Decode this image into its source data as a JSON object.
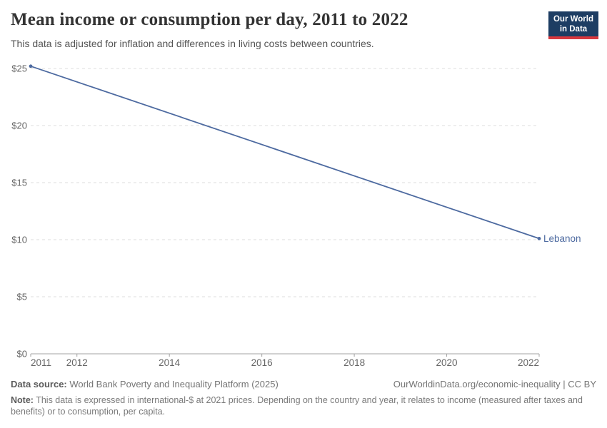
{
  "header": {
    "title": "Mean income or consumption per day, 2011 to 2022",
    "subtitle": "This data is adjusted for inflation and differences in living costs between countries.",
    "logo": {
      "line1": "Our World",
      "line2": "in Data",
      "bg_color": "#1d3d63",
      "stripe_color": "#d7383e"
    }
  },
  "chart_data": {
    "type": "line",
    "title": "Mean income or consumption per day, 2011 to 2022",
    "xlabel": "",
    "ylabel": "",
    "xlim": [
      2011,
      2022
    ],
    "ylim": [
      0,
      25
    ],
    "grid": "horizontal-dashed",
    "legend_position": "end-of-line-label",
    "x_ticks": [
      {
        "value": 2011,
        "label": "2011"
      },
      {
        "value": 2012,
        "label": "2012"
      },
      {
        "value": 2014,
        "label": "2014"
      },
      {
        "value": 2016,
        "label": "2016"
      },
      {
        "value": 2018,
        "label": "2018"
      },
      {
        "value": 2020,
        "label": "2020"
      },
      {
        "value": 2022,
        "label": "2022"
      }
    ],
    "y_ticks": [
      {
        "value": 0,
        "label": "$0"
      },
      {
        "value": 5,
        "label": "$5"
      },
      {
        "value": 10,
        "label": "$10"
      },
      {
        "value": 15,
        "label": "$15"
      },
      {
        "value": 20,
        "label": "$20"
      },
      {
        "value": 25,
        "label": "$25"
      }
    ],
    "series": [
      {
        "name": "Lebanon",
        "color": "#4d6aa0",
        "points": [
          {
            "x": 2011,
            "y": 25.2
          },
          {
            "x": 2022,
            "y": 10.1
          }
        ]
      }
    ]
  },
  "footer": {
    "data_source_label": "Data source:",
    "data_source_value": " World Bank Poverty and Inequality Platform (2025)",
    "link": "OurWorldinData.org/economic-inequality | CC BY",
    "note_label": "Note:",
    "note_value": " This data is expressed in international-$ at 2021 prices. Depending on the country and year, it relates to income (measured after taxes and benefits) or to consumption, per capita."
  },
  "colors": {
    "grid": "#dcdcdc",
    "axis": "#a3a3a3",
    "tick_label": "#666666",
    "series_line": "#4d6aa0"
  }
}
